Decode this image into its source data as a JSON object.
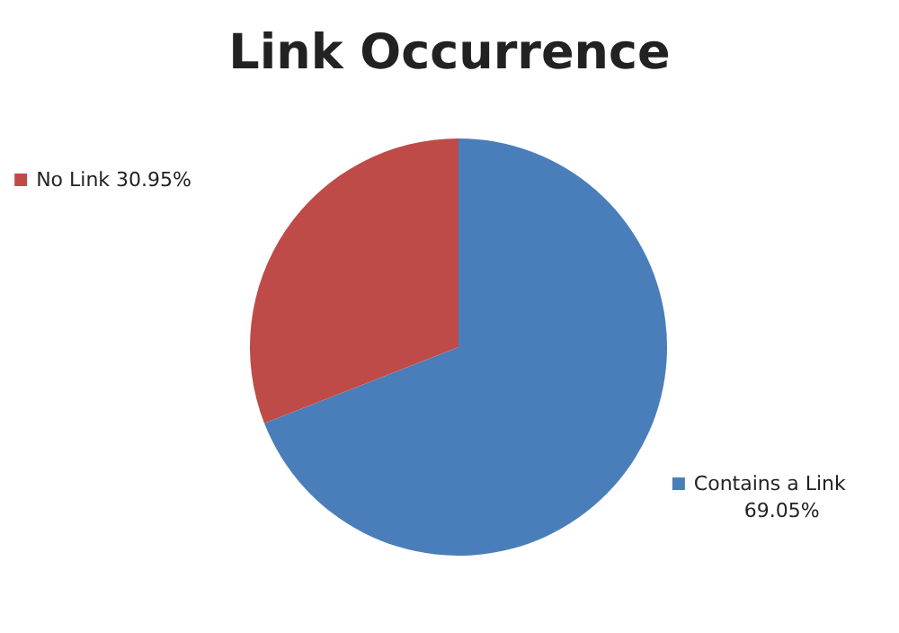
{
  "chart_data": {
    "type": "pie",
    "title": "Link Occurrence",
    "categories": [
      "Contains a Link",
      "No Link"
    ],
    "values": [
      69.05,
      30.95
    ],
    "colors": [
      "#4a7ebb",
      "#be4b48"
    ],
    "value_labels": [
      "69.05%",
      "30.95%"
    ],
    "legend": "top left"
  }
}
